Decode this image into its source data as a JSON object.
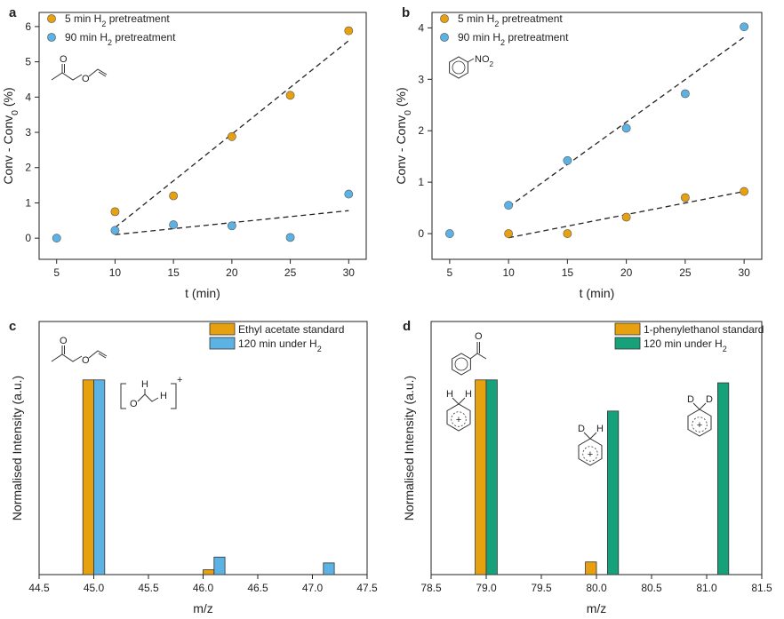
{
  "colors": {
    "orange": "#E8A10E",
    "blue": "#5DB2E4",
    "green": "#17A17B",
    "axis": "#222222"
  },
  "chart_data": [
    {
      "panel": "a",
      "type": "scatter",
      "xlabel": "t (min)",
      "ylabel": "Conv - Conv",
      "ylabel_sub": "0",
      "ylabel_tail": " (%)",
      "xlim": [
        3.5,
        31.5
      ],
      "ylim": [
        -0.6,
        6.4
      ],
      "xticks": [
        5,
        10,
        15,
        20,
        25,
        30
      ],
      "yticks": [
        0,
        1,
        2,
        3,
        4,
        5,
        6
      ],
      "legend": "top-left",
      "series": [
        {
          "name": "5 min H2 pretreatment",
          "label_pre": "5 min H",
          "label_sub": "2",
          "label_post": " pretreatment",
          "color": "orange",
          "x": [
            10,
            15,
            20,
            25,
            30
          ],
          "y": [
            0.75,
            1.2,
            2.88,
            4.05,
            5.88
          ],
          "fit": [
            [
              10,
              0.3
            ],
            [
              30,
              5.6
            ]
          ]
        },
        {
          "name": "90 min H2 pretreatment",
          "label_pre": "90 min H",
          "label_sub": "2",
          "label_post": " pretreatment",
          "color": "blue",
          "x": [
            5,
            10,
            15,
            20,
            25,
            30
          ],
          "y": [
            0.0,
            0.22,
            0.38,
            0.35,
            0.02,
            1.25
          ],
          "fit": [
            [
              10,
              0.1
            ],
            [
              30,
              0.78
            ]
          ]
        }
      ],
      "molecule": "vinyl-acetate"
    },
    {
      "panel": "b",
      "type": "scatter",
      "xlabel": "t (min)",
      "ylabel": "Conv - Conv",
      "ylabel_sub": "0",
      "ylabel_tail": " (%)",
      "xlim": [
        3.5,
        31.5
      ],
      "ylim": [
        -0.5,
        4.3
      ],
      "xticks": [
        5,
        10,
        15,
        20,
        25,
        30
      ],
      "yticks": [
        0,
        1,
        2,
        3,
        4
      ],
      "legend": "top-left",
      "series": [
        {
          "name": "5 min H2 pretreatment",
          "label_pre": "5 min H",
          "label_sub": "2",
          "label_post": " pretreatment",
          "color": "orange",
          "x": [
            10,
            15,
            20,
            25,
            30
          ],
          "y": [
            0.0,
            0.0,
            0.32,
            0.7,
            0.82
          ],
          "fit": [
            [
              10,
              -0.08
            ],
            [
              30,
              0.82
            ]
          ]
        },
        {
          "name": "90 min H2 pretreatment",
          "label_pre": "90 min H",
          "label_sub": "2",
          "label_post": " pretreatment",
          "color": "blue",
          "x": [
            5,
            10,
            15,
            20,
            25,
            30
          ],
          "y": [
            0.0,
            0.55,
            1.42,
            2.05,
            2.72,
            4.02
          ],
          "fit": [
            [
              10,
              0.52
            ],
            [
              30,
              3.82
            ]
          ]
        }
      ],
      "molecule": "nitrobenzene",
      "molecule_label": "NO",
      "molecule_sub": "2"
    },
    {
      "panel": "c",
      "type": "bar",
      "xlabel": "m/z",
      "ylabel": "Normalised Intensity (a.u.)",
      "xlim": [
        44.5,
        47.5
      ],
      "ylim": [
        0,
        1.3
      ],
      "xticks": [
        44.5,
        45.0,
        45.5,
        46.0,
        46.5,
        47.0,
        47.5
      ],
      "xtick_labels": [
        "44.5",
        "45.0",
        "45.5",
        "46.0",
        "46.5",
        "47.0",
        "47.5"
      ],
      "legend": "top-right",
      "series": [
        {
          "name": "Ethyl acetate standard",
          "label_pre": "Ethyl acetate standard",
          "label_sub": "",
          "label_post": "",
          "color": "orange",
          "x": [
            44.95,
            46.05
          ],
          "values": [
            1.0,
            0.025
          ]
        },
        {
          "name": "120 min under H2",
          "label_pre": "120 min under H",
          "label_sub": "2",
          "label_post": "",
          "color": "blue",
          "x": [
            45.05,
            46.15,
            47.15
          ],
          "values": [
            1.0,
            0.09,
            0.06
          ]
        }
      ],
      "fragment_labels": {
        "h1": "H",
        "h2": "H",
        "o": "O",
        "plus": "+"
      },
      "molecule": "vinyl-acetate"
    },
    {
      "panel": "d",
      "type": "bar",
      "xlabel": "m/z",
      "ylabel": "Normalised Intensity (a.u.)",
      "xlim": [
        78.5,
        81.5
      ],
      "ylim": [
        0,
        1.3
      ],
      "xticks": [
        78.5,
        79.0,
        79.5,
        80.0,
        80.5,
        81.0,
        81.5
      ],
      "xtick_labels": [
        "78.5",
        "79.0",
        "79.5",
        "80.0",
        "80.5",
        "81.0",
        "81.5"
      ],
      "legend": "top-right",
      "series": [
        {
          "name": "1-phenylethanol standard",
          "label_pre": "1-phenylethanol standard",
          "label_sub": "",
          "label_post": "",
          "color": "orange",
          "x": [
            78.95,
            79.95
          ],
          "values": [
            1.0,
            0.065
          ]
        },
        {
          "name": "120 min under H2",
          "label_pre": "120 min under H",
          "label_sub": "2",
          "label_post": "",
          "color": "green",
          "x": [
            79.05,
            80.15,
            81.15
          ],
          "values": [
            1.0,
            0.84,
            0.985
          ]
        }
      ],
      "fragment_labels": {
        "f1a": "H",
        "f1b": "H",
        "f2a": "D",
        "f2b": "H",
        "f3a": "D",
        "f3b": "D",
        "plus": "+"
      },
      "molecule": "acetophenone"
    }
  ]
}
